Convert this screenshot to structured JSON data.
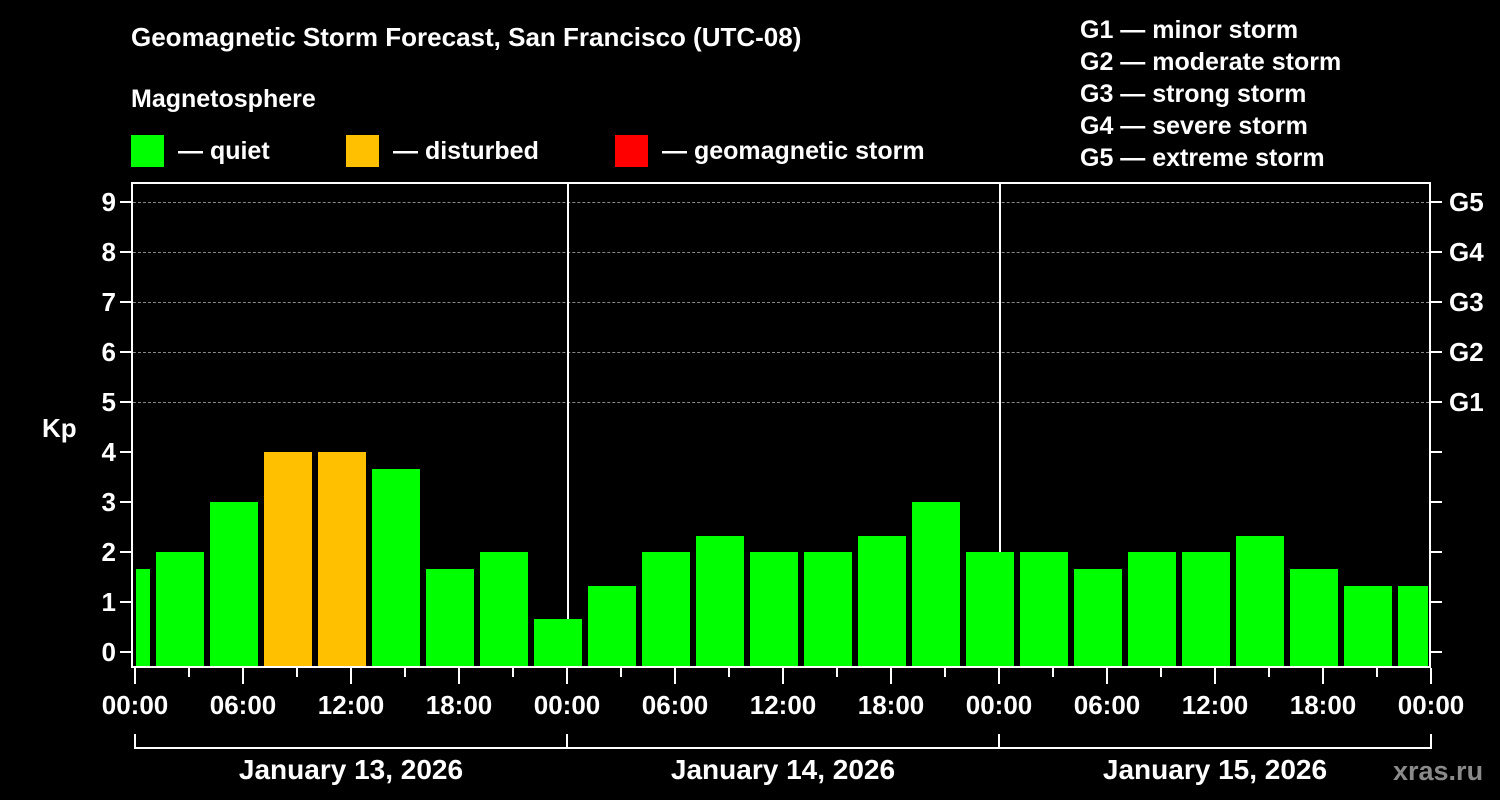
{
  "title": "Geomagnetic Storm Forecast, San Francisco (UTC-08)",
  "subtitle": "Magnetosphere",
  "legend": [
    {
      "label": "— quiet",
      "color": "#00ff00"
    },
    {
      "label": "— disturbed",
      "color": "#ffc000"
    },
    {
      "label": "— geomagnetic storm",
      "color": "#ff0000"
    }
  ],
  "storm_scale": [
    "G1 — minor storm",
    "G2 — moderate storm",
    "G3 — strong storm",
    "G4 — severe storm",
    "G5 — extreme storm"
  ],
  "watermark": "xras.ru",
  "chart_data": {
    "type": "bar",
    "title": "Geomagnetic Storm Forecast, San Francisco (UTC-08)",
    "subtitle": "Magnetosphere",
    "ylabel": "Kp",
    "xlabel": "",
    "ylim": [
      0,
      9
    ],
    "yticks": [
      0,
      1,
      2,
      3,
      4,
      5,
      6,
      7,
      8,
      9
    ],
    "right_axis_labels": [
      {
        "kp": 5,
        "label": "G1"
      },
      {
        "kp": 6,
        "label": "G2"
      },
      {
        "kp": 7,
        "label": "G3"
      },
      {
        "kp": 8,
        "label": "G4"
      },
      {
        "kp": 9,
        "label": "G5"
      }
    ],
    "grid": "dashed horizontal at Kp 5-9",
    "legend_position": "top",
    "x_tick_labels": [
      "00:00",
      "06:00",
      "12:00",
      "18:00",
      "00:00",
      "06:00",
      "12:00",
      "18:00",
      "00:00",
      "06:00",
      "12:00",
      "18:00",
      "00:00"
    ],
    "days": [
      "January 13, 2026",
      "January 14, 2026",
      "January 15, 2026"
    ],
    "categories": [
      "Jan 13 ~00:00 (partial)",
      "Jan 13 03:00",
      "Jan 13 06:00",
      "Jan 13 09:00",
      "Jan 13 12:00",
      "Jan 13 15:00",
      "Jan 13 18:00",
      "Jan 13 21:00",
      "Jan 14 00:00",
      "Jan 14 03:00",
      "Jan 14 06:00",
      "Jan 14 09:00",
      "Jan 14 12:00",
      "Jan 14 15:00",
      "Jan 14 18:00",
      "Jan 14 21:00",
      "Jan 15 00:00",
      "Jan 15 03:00",
      "Jan 15 06:00",
      "Jan 15 09:00",
      "Jan 15 12:00",
      "Jan 15 15:00",
      "Jan 15 18:00",
      "Jan 15 21:00",
      "Jan 15 ~24:00 (partial)"
    ],
    "values": [
      1.67,
      2,
      3,
      4,
      4,
      3.67,
      1.67,
      2,
      0.67,
      1.33,
      2,
      2.33,
      2,
      2,
      2.33,
      3,
      2,
      2,
      1.67,
      2,
      2,
      2.33,
      1.67,
      1.33,
      1.33
    ],
    "status": [
      "quiet",
      "quiet",
      "quiet",
      "disturbed",
      "disturbed",
      "quiet",
      "quiet",
      "quiet",
      "quiet",
      "quiet",
      "quiet",
      "quiet",
      "quiet",
      "quiet",
      "quiet",
      "quiet",
      "quiet",
      "quiet",
      "quiet",
      "quiet",
      "quiet",
      "quiet",
      "quiet",
      "quiet",
      "quiet"
    ],
    "colors": {
      "quiet": "#00ff00",
      "disturbed": "#ffc000",
      "storm": "#ff0000"
    }
  }
}
